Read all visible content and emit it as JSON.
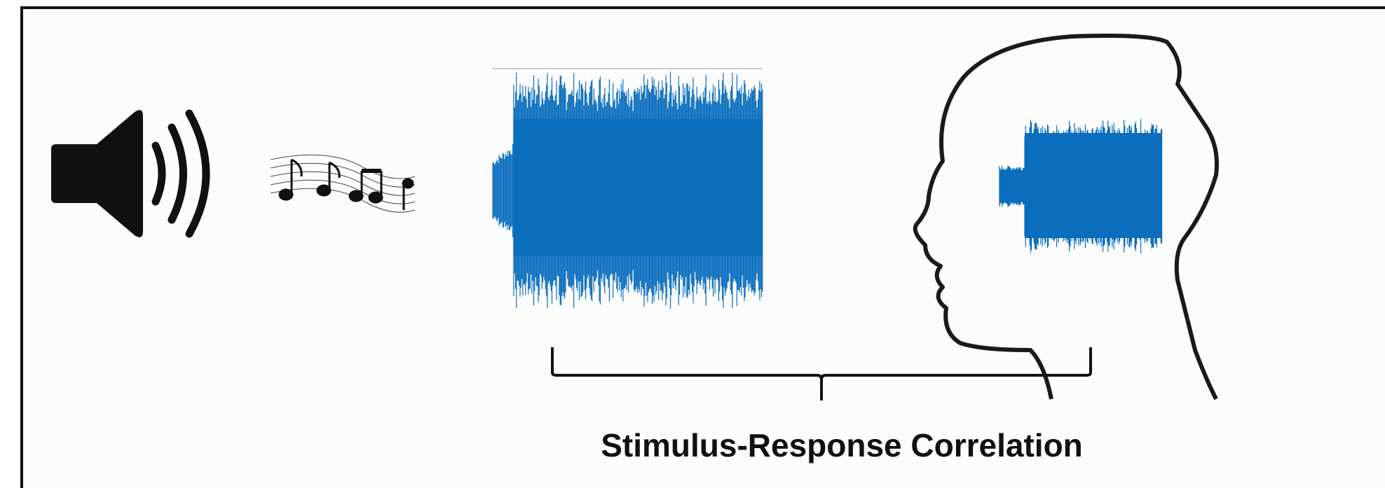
{
  "caption": "Stimulus-Response Correlation"
}
